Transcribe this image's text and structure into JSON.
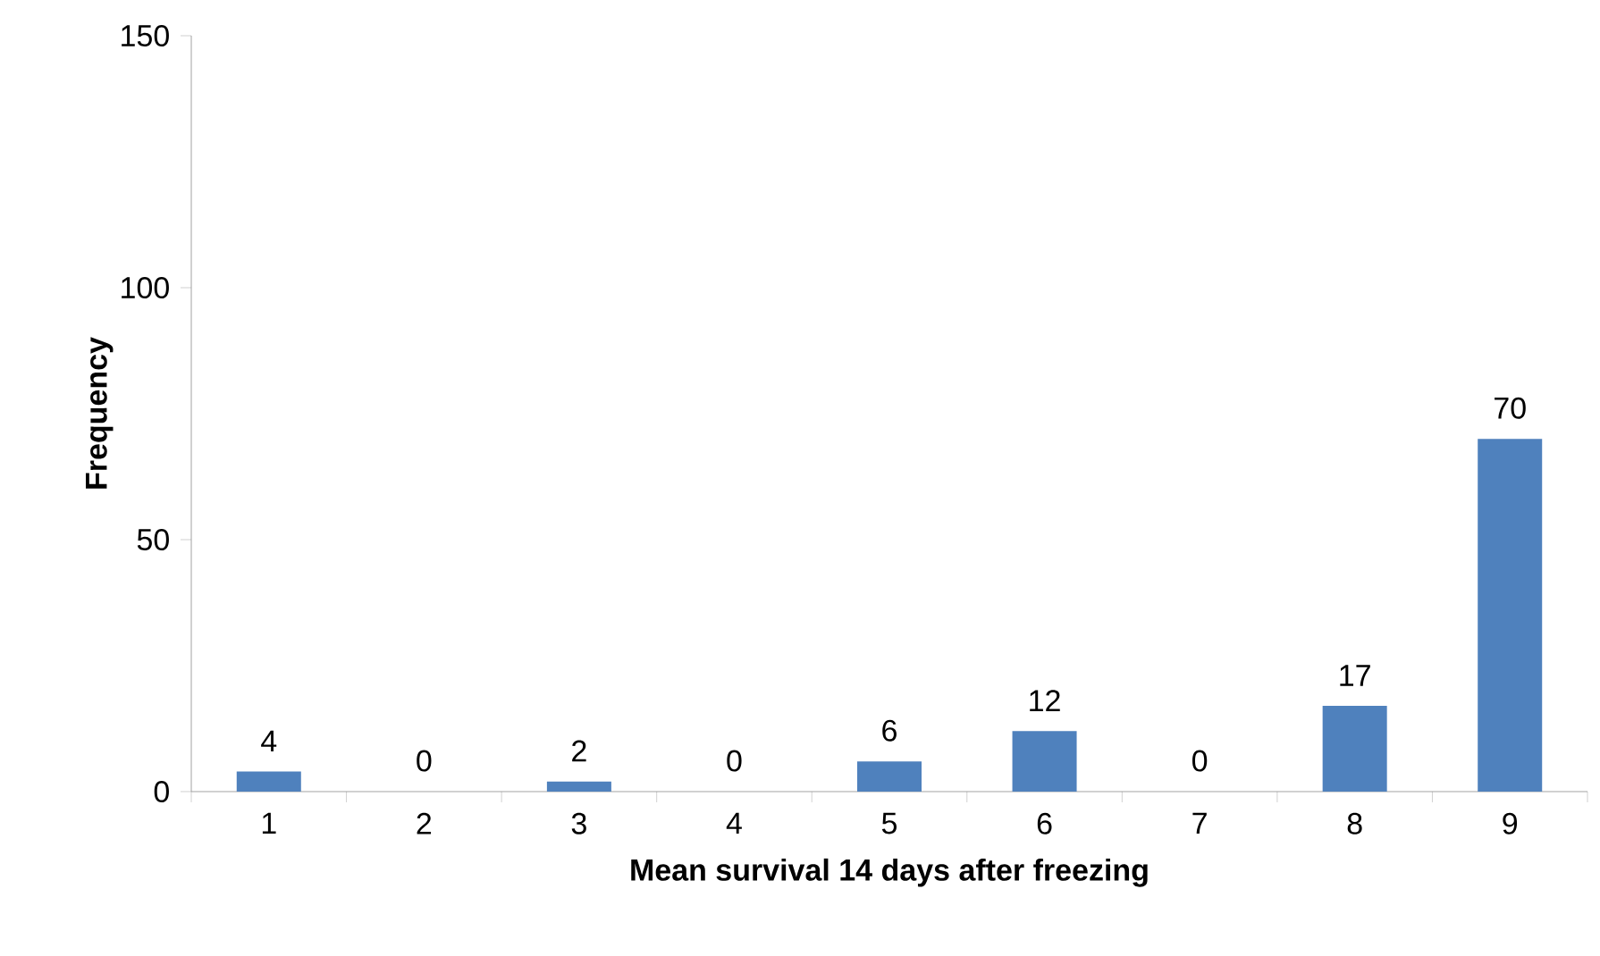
{
  "chart_data": {
    "type": "bar",
    "xlabel": "Mean survival 14 days after freezing",
    "ylabel": "Frequency",
    "categories": [
      "1",
      "2",
      "3",
      "4",
      "5",
      "6",
      "7",
      "8",
      "9"
    ],
    "values": [
      4,
      0,
      2,
      0,
      6,
      12,
      0,
      17,
      70
    ],
    "color": "#4f81bd",
    "ylim": [
      0,
      150
    ],
    "yticks": [
      0,
      50,
      100,
      150
    ],
    "data_labels": true
  }
}
